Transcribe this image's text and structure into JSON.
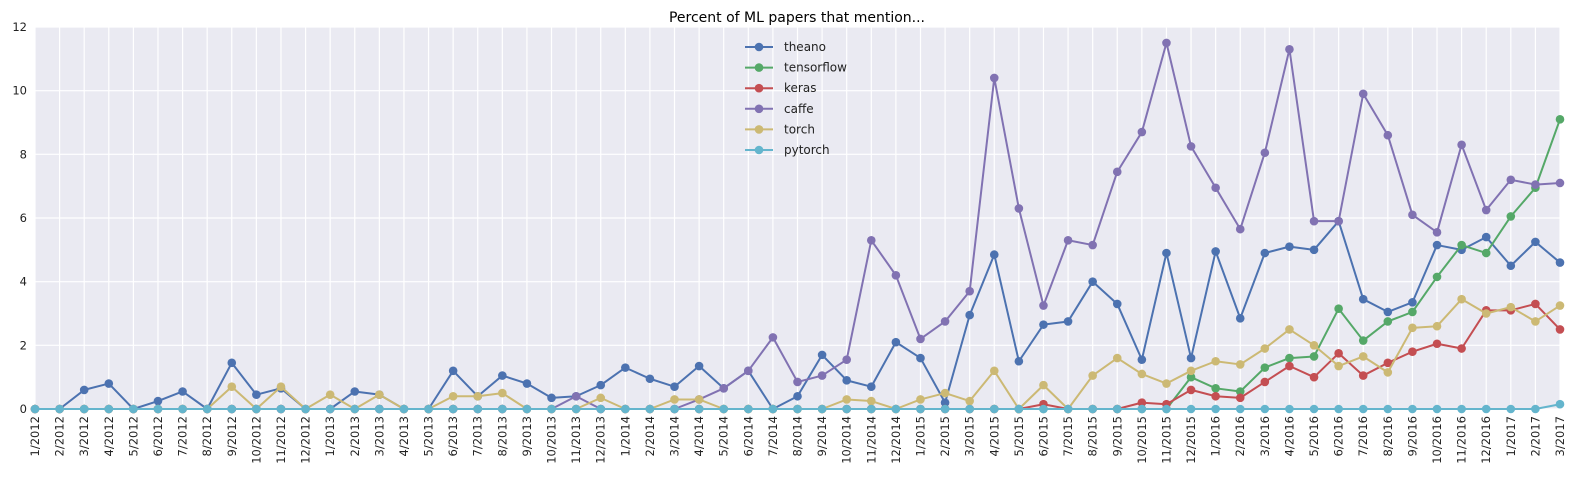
{
  "chart_data": {
    "type": "line",
    "title": "Percent of ML papers that mention...",
    "xlabel": "",
    "ylabel": "",
    "ylim": [
      0,
      12
    ],
    "yticks": [
      "0",
      "2",
      "4",
      "6",
      "8",
      "10",
      "12"
    ],
    "grid": true,
    "legend_position": "top-center",
    "categories": [
      "1/2012",
      "2/2012",
      "3/2012",
      "4/2012",
      "5/2012",
      "6/2012",
      "7/2012",
      "8/2012",
      "9/2012",
      "10/2012",
      "11/2012",
      "12/2012",
      "1/2013",
      "2/2013",
      "3/2013",
      "4/2013",
      "5/2013",
      "6/2013",
      "7/2013",
      "8/2013",
      "9/2013",
      "10/2013",
      "11/2013",
      "12/2013",
      "1/2014",
      "2/2014",
      "3/2014",
      "4/2014",
      "5/2014",
      "6/2014",
      "7/2014",
      "8/2014",
      "9/2014",
      "10/2014",
      "11/2014",
      "12/2014",
      "1/2015",
      "2/2015",
      "3/2015",
      "4/2015",
      "5/2015",
      "6/2015",
      "7/2015",
      "8/2015",
      "9/2015",
      "10/2015",
      "11/2015",
      "12/2015",
      "1/2016",
      "2/2016",
      "3/2016",
      "4/2016",
      "5/2016",
      "6/2016",
      "7/2016",
      "8/2016",
      "9/2016",
      "10/2016",
      "11/2016",
      "12/2016",
      "1/2017",
      "2/2017",
      "3/2017"
    ],
    "series": [
      {
        "name": "theano",
        "color": "#4c72b0",
        "values": [
          0,
          0,
          0.6,
          0.8,
          0,
          0.25,
          0.55,
          0,
          1.45,
          0.45,
          0.65,
          0,
          0,
          0.55,
          0.45,
          0,
          0,
          1.2,
          0.4,
          1.05,
          0.8,
          0.35,
          0.4,
          0.75,
          1.3,
          0.95,
          0.7,
          1.35,
          0.65,
          1.2,
          0,
          0.4,
          1.7,
          0.9,
          0.7,
          2.1,
          1.6,
          0.2,
          2.95,
          4.85,
          1.5,
          2.65,
          2.75,
          4.0,
          3.3,
          1.55,
          4.9,
          1.6,
          4.95,
          2.85,
          4.9,
          5.1,
          5.0,
          5.9,
          3.45,
          3.05,
          3.35,
          5.15,
          5.0,
          5.4,
          4.5,
          5.25,
          4.6
        ]
      },
      {
        "name": "tensorflow",
        "color": "#55a868",
        "values": [
          0,
          0,
          0,
          0,
          0,
          0,
          0,
          0,
          0,
          0,
          0,
          0,
          0,
          0,
          0,
          0,
          0,
          0,
          0,
          0,
          0,
          0,
          0,
          0,
          0,
          0,
          0,
          0,
          0,
          0,
          0,
          0,
          0,
          0,
          0,
          0,
          0,
          0,
          0,
          0,
          0,
          0,
          0,
          0,
          0,
          0,
          0,
          1.0,
          0.65,
          0.55,
          1.3,
          1.6,
          1.65,
          3.15,
          2.15,
          2.75,
          3.05,
          4.15,
          5.15,
          4.9,
          6.05,
          6.95,
          9.1
        ]
      },
      {
        "name": "keras",
        "color": "#c44e52",
        "values": [
          0,
          0,
          0,
          0,
          0,
          0,
          0,
          0,
          0,
          0,
          0,
          0,
          0,
          0,
          0,
          0,
          0,
          0,
          0,
          0,
          0,
          0,
          0,
          0,
          0,
          0,
          0,
          0,
          0,
          0,
          0,
          0,
          0,
          0,
          0,
          0,
          0,
          0,
          0,
          0,
          0,
          0.15,
          0,
          0,
          0,
          0.2,
          0.15,
          0.6,
          0.4,
          0.35,
          0.85,
          1.35,
          1.0,
          1.75,
          1.05,
          1.45,
          1.8,
          2.05,
          1.9,
          3.1,
          3.1,
          3.3,
          2.5
        ]
      },
      {
        "name": "caffe",
        "color": "#8172b2",
        "values": [
          0,
          0,
          0,
          0,
          0,
          0,
          0,
          0,
          0,
          0,
          0,
          0,
          0,
          0,
          0,
          0,
          0,
          0,
          0,
          0,
          0,
          0,
          0.4,
          0,
          0,
          0,
          0,
          0.3,
          0.65,
          1.2,
          2.25,
          0.85,
          1.05,
          1.55,
          5.3,
          4.2,
          2.2,
          2.75,
          3.7,
          10.4,
          6.3,
          3.25,
          5.3,
          5.15,
          7.45,
          8.7,
          11.5,
          8.25,
          6.95,
          5.65,
          8.05,
          11.3,
          5.9,
          5.9,
          9.9,
          8.6,
          6.1,
          5.55,
          8.3,
          6.25,
          7.2,
          7.05,
          7.1
        ]
      },
      {
        "name": "torch",
        "color": "#ccb974",
        "values": [
          0,
          0,
          0,
          0,
          0,
          0,
          0,
          0,
          0.7,
          0,
          0.7,
          0,
          0.45,
          0,
          0.45,
          0,
          0,
          0.4,
          0.4,
          0.5,
          0,
          0,
          0,
          0.35,
          0,
          0,
          0.3,
          0.3,
          0,
          0,
          0,
          0,
          0,
          0.3,
          0.25,
          0,
          0.3,
          0.5,
          0.25,
          1.2,
          0,
          0.75,
          0,
          1.05,
          1.6,
          1.1,
          0.8,
          1.2,
          1.5,
          1.4,
          1.9,
          2.5,
          2.0,
          1.35,
          1.65,
          1.15,
          2.55,
          2.6,
          3.45,
          3.0,
          3.2,
          2.75,
          3.25
        ]
      },
      {
        "name": "pytorch",
        "color": "#64b5cd",
        "values": [
          0,
          0,
          0,
          0,
          0,
          0,
          0,
          0,
          0,
          0,
          0,
          0,
          0,
          0,
          0,
          0,
          0,
          0,
          0,
          0,
          0,
          0,
          0,
          0,
          0,
          0,
          0,
          0,
          0,
          0,
          0,
          0,
          0,
          0,
          0,
          0,
          0,
          0,
          0,
          0,
          0,
          0,
          0,
          0,
          0,
          0,
          0,
          0,
          0,
          0,
          0,
          0,
          0,
          0,
          0,
          0,
          0,
          0,
          0,
          0,
          0,
          0,
          0.15
        ]
      }
    ]
  }
}
